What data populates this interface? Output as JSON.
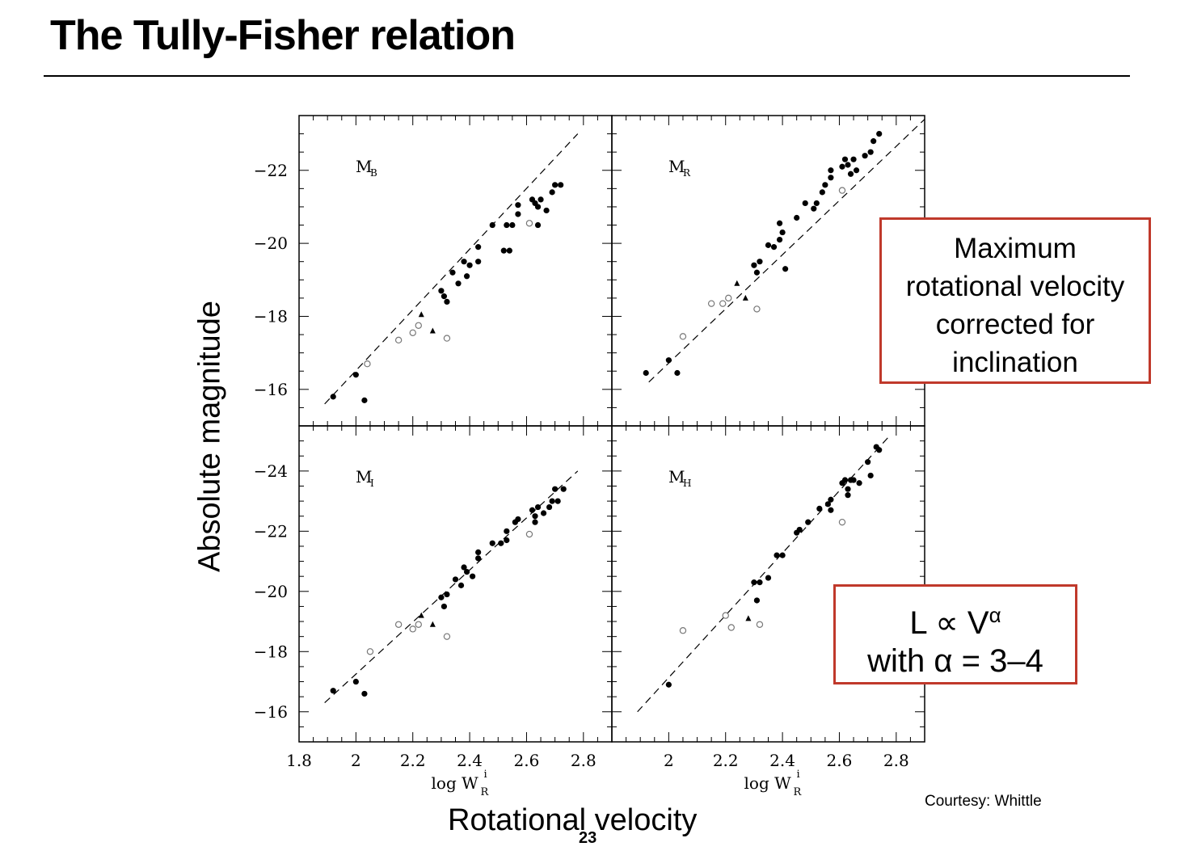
{
  "slide": {
    "title": "The Tully-Fisher relation",
    "ylabel": "Absolute magnitude",
    "xlabel": "Rotational velocity",
    "page_number": "23",
    "credit": "Courtesy: Whittle"
  },
  "callouts": {
    "box1_lines": [
      "Maximum",
      "rotational velocity",
      "corrected for",
      "inclination"
    ],
    "box2_line1_L": "L ∝ V",
    "box2_line1_sup": "α",
    "box2_line2": "with α = 3–4"
  },
  "colors": {
    "callout_border": "#c0392b",
    "text": "#000000"
  },
  "chart_data": [
    {
      "type": "scatter",
      "panel": "top-left",
      "label_main": "M",
      "label_sub": "B",
      "xlim": [
        1.8,
        2.9
      ],
      "ylim": [
        -15,
        -23.5
      ],
      "yticks": [
        -22,
        -20,
        -18,
        -16
      ],
      "xtick_labels": [],
      "fit_line": [
        [
          1.89,
          -15.6
        ],
        [
          2.78,
          -23.0
        ]
      ],
      "filled": [
        [
          1.92,
          -15.8
        ],
        [
          2.0,
          -16.4
        ],
        [
          2.03,
          -15.7
        ],
        [
          2.3,
          -18.7
        ],
        [
          2.31,
          -18.55
        ],
        [
          2.32,
          -18.4
        ],
        [
          2.34,
          -19.2
        ],
        [
          2.36,
          -18.9
        ],
        [
          2.38,
          -19.5
        ],
        [
          2.39,
          -19.1
        ],
        [
          2.4,
          -19.4
        ],
        [
          2.43,
          -19.5
        ],
        [
          2.43,
          -19.9
        ],
        [
          2.48,
          -20.5
        ],
        [
          2.53,
          -20.5
        ],
        [
          2.55,
          -20.5
        ],
        [
          2.52,
          -19.8
        ],
        [
          2.54,
          -19.8
        ],
        [
          2.57,
          -20.8
        ],
        [
          2.57,
          -21.05
        ],
        [
          2.62,
          -21.2
        ],
        [
          2.63,
          -21.1
        ],
        [
          2.64,
          -21.0
        ],
        [
          2.65,
          -21.2
        ],
        [
          2.64,
          -20.5
        ],
        [
          2.67,
          -20.9
        ],
        [
          2.69,
          -21.4
        ],
        [
          2.7,
          -21.6
        ],
        [
          2.72,
          -21.6
        ]
      ],
      "open": [
        [
          2.04,
          -16.7
        ],
        [
          2.15,
          -17.35
        ],
        [
          2.2,
          -17.55
        ],
        [
          2.22,
          -17.75
        ],
        [
          2.32,
          -17.4
        ],
        [
          2.61,
          -20.55
        ]
      ],
      "triangles": [
        [
          2.23,
          -18.05
        ],
        [
          2.27,
          -17.6
        ]
      ]
    },
    {
      "type": "scatter",
      "panel": "top-right",
      "label_main": "M",
      "label_sub": "R",
      "xlim": [
        1.8,
        2.9
      ],
      "ylim": [
        -15,
        -23.5
      ],
      "yticks": [
        -22,
        -20,
        -18,
        -16
      ],
      "xtick_labels": [],
      "fit_line": [
        [
          1.93,
          -16.2
        ],
        [
          2.9,
          -23.4
        ]
      ],
      "filled": [
        [
          1.92,
          -16.45
        ],
        [
          2.0,
          -16.8
        ],
        [
          2.03,
          -16.45
        ],
        [
          2.3,
          -19.4
        ],
        [
          2.31,
          -19.2
        ],
        [
          2.32,
          -19.5
        ],
        [
          2.35,
          -19.95
        ],
        [
          2.37,
          -19.9
        ],
        [
          2.39,
          -20.1
        ],
        [
          2.39,
          -20.55
        ],
        [
          2.4,
          -20.3
        ],
        [
          2.41,
          -19.3
        ],
        [
          2.45,
          -20.7
        ],
        [
          2.48,
          -21.1
        ],
        [
          2.51,
          -20.95
        ],
        [
          2.52,
          -21.1
        ],
        [
          2.54,
          -21.4
        ],
        [
          2.55,
          -21.6
        ],
        [
          2.57,
          -21.8
        ],
        [
          2.57,
          -22.0
        ],
        [
          2.61,
          -22.1
        ],
        [
          2.62,
          -22.3
        ],
        [
          2.63,
          -22.15
        ],
        [
          2.64,
          -21.9
        ],
        [
          2.65,
          -22.3
        ],
        [
          2.66,
          -22.0
        ],
        [
          2.69,
          -22.4
        ],
        [
          2.71,
          -22.5
        ],
        [
          2.72,
          -22.8
        ],
        [
          2.74,
          -23.0
        ]
      ],
      "open": [
        [
          2.05,
          -17.45
        ],
        [
          2.15,
          -18.35
        ],
        [
          2.19,
          -18.35
        ],
        [
          2.21,
          -18.5
        ],
        [
          2.31,
          -18.2
        ],
        [
          2.61,
          -21.45
        ]
      ],
      "triangles": [
        [
          2.24,
          -18.9
        ],
        [
          2.27,
          -18.5
        ]
      ]
    },
    {
      "type": "scatter",
      "panel": "bottom-left",
      "label_main": "M",
      "label_sub": "I",
      "xlim": [
        1.8,
        2.9
      ],
      "ylim": [
        -15,
        -25.5
      ],
      "yticks": [
        -24,
        -22,
        -20,
        -18,
        -16
      ],
      "xtick_labels": [
        "1.8",
        "2",
        "2.2",
        "2.4",
        "2.6",
        "2.8"
      ],
      "xtick_values": [
        1.8,
        2.0,
        2.2,
        2.4,
        2.6,
        2.8
      ],
      "xaxis_label": "log W",
      "xaxis_label_sub": "R",
      "xaxis_label_sup": "i",
      "fit_line": [
        [
          1.89,
          -16.3
        ],
        [
          2.78,
          -24.0
        ]
      ],
      "filled": [
        [
          1.92,
          -16.7
        ],
        [
          2.0,
          -17.0
        ],
        [
          2.03,
          -16.6
        ],
        [
          2.3,
          -19.8
        ],
        [
          2.31,
          -19.5
        ],
        [
          2.32,
          -19.9
        ],
        [
          2.35,
          -20.4
        ],
        [
          2.37,
          -20.2
        ],
        [
          2.38,
          -20.8
        ],
        [
          2.39,
          -20.65
        ],
        [
          2.41,
          -20.5
        ],
        [
          2.43,
          -21.1
        ],
        [
          2.43,
          -21.3
        ],
        [
          2.48,
          -21.6
        ],
        [
          2.51,
          -21.6
        ],
        [
          2.53,
          -21.7
        ],
        [
          2.53,
          -22.0
        ],
        [
          2.56,
          -22.3
        ],
        [
          2.57,
          -22.4
        ],
        [
          2.62,
          -22.7
        ],
        [
          2.63,
          -22.5
        ],
        [
          2.63,
          -22.3
        ],
        [
          2.64,
          -22.8
        ],
        [
          2.66,
          -22.6
        ],
        [
          2.68,
          -22.8
        ],
        [
          2.69,
          -23.0
        ],
        [
          2.71,
          -23.0
        ],
        [
          2.7,
          -23.4
        ],
        [
          2.73,
          -23.4
        ]
      ],
      "open": [
        [
          2.05,
          -18.0
        ],
        [
          2.15,
          -18.9
        ],
        [
          2.2,
          -18.75
        ],
        [
          2.22,
          -18.9
        ],
        [
          2.32,
          -18.5
        ],
        [
          2.61,
          -21.9
        ]
      ],
      "triangles": [
        [
          2.23,
          -19.2
        ],
        [
          2.27,
          -18.9
        ]
      ]
    },
    {
      "type": "scatter",
      "panel": "bottom-right",
      "label_main": "M",
      "label_sub": "H",
      "xlim": [
        1.8,
        2.9
      ],
      "ylim": [
        -15,
        -25.5
      ],
      "yticks": [
        -24,
        -22,
        -20,
        -18,
        -16
      ],
      "xtick_labels": [
        "2",
        "2.2",
        "2.4",
        "2.6",
        "2.8"
      ],
      "xtick_values": [
        2.0,
        2.2,
        2.4,
        2.6,
        2.8
      ],
      "xaxis_label": "log W",
      "xaxis_label_sub": "R",
      "xaxis_label_sup": "i",
      "fit_line": [
        [
          1.89,
          -16.0
        ],
        [
          2.77,
          -25.1
        ]
      ],
      "filled": [
        [
          2.0,
          -16.9
        ],
        [
          2.3,
          -20.3
        ],
        [
          2.31,
          -19.7
        ],
        [
          2.32,
          -20.3
        ],
        [
          2.35,
          -20.45
        ],
        [
          2.38,
          -21.2
        ],
        [
          2.4,
          -21.2
        ],
        [
          2.45,
          -21.95
        ],
        [
          2.46,
          -22.05
        ],
        [
          2.49,
          -22.3
        ],
        [
          2.53,
          -22.75
        ],
        [
          2.56,
          -22.9
        ],
        [
          2.57,
          -22.7
        ],
        [
          2.57,
          -23.05
        ],
        [
          2.61,
          -23.6
        ],
        [
          2.62,
          -23.7
        ],
        [
          2.63,
          -23.4
        ],
        [
          2.64,
          -23.7
        ],
        [
          2.65,
          -23.7
        ],
        [
          2.63,
          -23.2
        ],
        [
          2.67,
          -23.6
        ],
        [
          2.7,
          -24.3
        ],
        [
          2.71,
          -23.85
        ],
        [
          2.73,
          -24.8
        ],
        [
          2.74,
          -24.7
        ]
      ],
      "open": [
        [
          2.05,
          -18.7
        ],
        [
          2.2,
          -19.2
        ],
        [
          2.22,
          -18.8
        ],
        [
          2.32,
          -18.9
        ],
        [
          2.61,
          -22.3
        ]
      ],
      "triangles": [
        [
          2.28,
          -19.1
        ]
      ]
    }
  ]
}
